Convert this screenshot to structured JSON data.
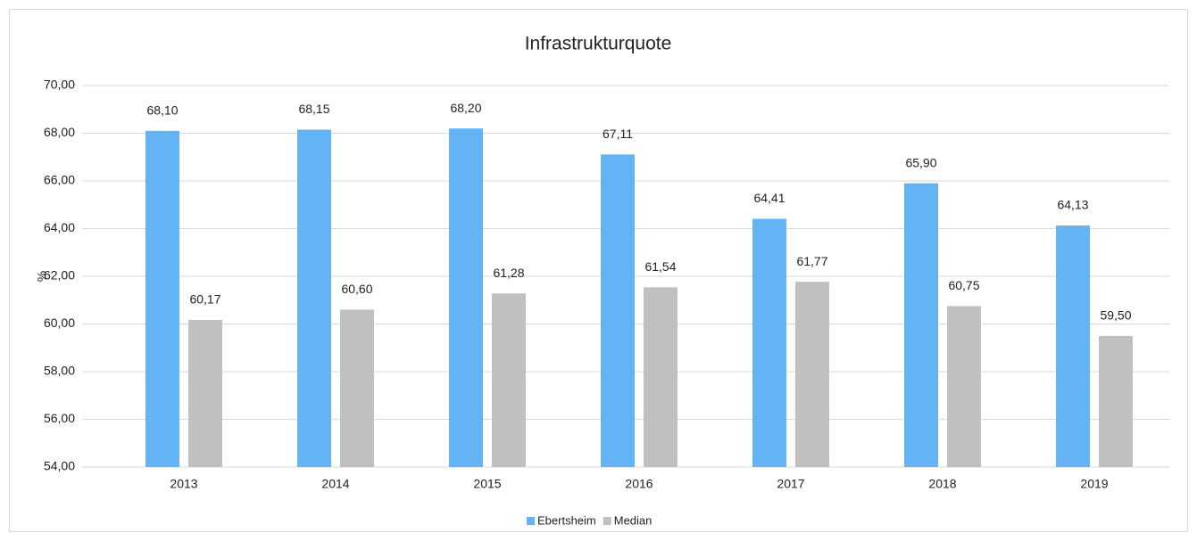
{
  "chart_data": {
    "type": "bar",
    "title": "Infrastrukturquote",
    "y_label": "%",
    "categories": [
      "2013",
      "2014",
      "2015",
      "2016",
      "2017",
      "2018",
      "2019"
    ],
    "series": [
      {
        "name": "Ebertsheim",
        "color": "#63b3f5",
        "values": [
          68.1,
          68.15,
          68.2,
          67.11,
          64.41,
          65.9,
          64.13
        ],
        "value_labels": [
          "68,10",
          "68,15",
          "68,20",
          "67,11",
          "64,41",
          "65,90",
          "64,13"
        ]
      },
      {
        "name": "Median",
        "color": "#c0c0c0",
        "values": [
          60.17,
          60.6,
          61.28,
          61.54,
          61.77,
          60.75,
          59.5
        ],
        "value_labels": [
          "60,17",
          "60,60",
          "61,28",
          "61,54",
          "61,77",
          "60,75",
          "59,50"
        ]
      }
    ],
    "ylim": [
      54,
      70
    ],
    "yticks": [
      {
        "value": 54,
        "label": "54,00"
      },
      {
        "value": 56,
        "label": "56,00"
      },
      {
        "value": 58,
        "label": "58,00"
      },
      {
        "value": 60,
        "label": "60,00"
      },
      {
        "value": 62,
        "label": "62,00"
      },
      {
        "value": 64,
        "label": "64,00"
      },
      {
        "value": 66,
        "label": "66,00"
      },
      {
        "value": 68,
        "label": "68,00"
      },
      {
        "value": 70,
        "label": "70,00"
      }
    ],
    "grid": true,
    "legend": "bottom"
  }
}
